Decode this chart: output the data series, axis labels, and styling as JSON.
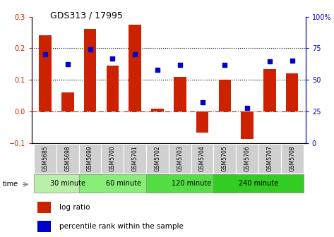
{
  "title": "GDS313 / 17995",
  "categories": [
    "GSM5685",
    "GSM5698",
    "GSM5699",
    "GSM5700",
    "GSM5701",
    "GSM5702",
    "GSM5703",
    "GSM5704",
    "GSM5705",
    "GSM5706",
    "GSM5707",
    "GSM5708"
  ],
  "log_ratio": [
    0.24,
    0.06,
    0.26,
    0.145,
    0.275,
    0.01,
    0.11,
    -0.065,
    0.1,
    -0.085,
    0.135,
    0.12
  ],
  "percentile_rank": [
    0.18,
    0.15,
    0.197,
    0.168,
    0.182,
    0.133,
    0.148,
    0.03,
    0.148,
    0.012,
    0.158,
    0.16
  ],
  "bar_color": "#cc2200",
  "dot_color": "#0000cc",
  "ylim": [
    -0.1,
    0.3
  ],
  "y2lim": [
    0,
    100
  ],
  "y_ticks": [
    -0.1,
    0.0,
    0.1,
    0.2,
    0.3
  ],
  "y2_ticks": [
    0,
    25,
    50,
    75,
    100
  ],
  "y2_tick_labels": [
    "0",
    "25",
    "50",
    "75",
    "100%"
  ],
  "hline_color": "#cc2200",
  "dotted_line_color": "#000000",
  "groups": [
    {
      "label": "30 minute",
      "start": 0,
      "end": 2,
      "color": "#99ee88"
    },
    {
      "label": "60 minute",
      "start": 2,
      "end": 5,
      "color": "#66ee55"
    },
    {
      "label": "120 minute",
      "start": 5,
      "end": 8,
      "color": "#44dd33"
    },
    {
      "label": "240 minute",
      "start": 8,
      "end": 11,
      "color": "#33cc22"
    }
  ],
  "time_label": "time",
  "legend_bar_label": "log ratio",
  "legend_dot_label": "percentile rank within the sample",
  "bg_color": "#ffffff",
  "plot_bg_color": "#ffffff",
  "tick_label_color_left": "#cc2200",
  "tick_label_color_right": "#0000cc",
  "label_box_color": "#d0d0d0",
  "group_border_color": "#888888"
}
